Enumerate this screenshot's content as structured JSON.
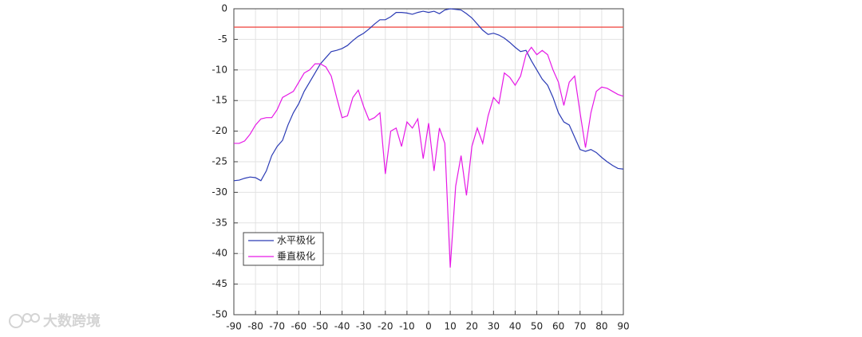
{
  "chart_data": {
    "type": "line",
    "x": [
      -90,
      -87.5,
      -85,
      -82.5,
      -80,
      -77.5,
      -75,
      -72.5,
      -70,
      -67.5,
      -65,
      -62.5,
      -60,
      -57.5,
      -55,
      -52.5,
      -50,
      -47.5,
      -45,
      -42.5,
      -40,
      -37.5,
      -35,
      -32.5,
      -30,
      -27.5,
      -25,
      -22.5,
      -20,
      -17.5,
      -15,
      -12.5,
      -10,
      -7.5,
      -5,
      -2.5,
      0,
      2.5,
      5,
      7.5,
      10,
      12.5,
      15,
      17.5,
      20,
      22.5,
      25,
      27.5,
      30,
      32.5,
      35,
      37.5,
      40,
      42.5,
      45,
      47.5,
      50,
      52.5,
      55,
      57.5,
      60,
      62.5,
      65,
      67.5,
      70,
      72.5,
      75,
      77.5,
      80,
      82.5,
      85,
      87.5,
      90
    ],
    "series": [
      {
        "name": "水平极化",
        "color": "#2b3bb5",
        "values": [
          -28.1,
          -28,
          -27.7,
          -27.5,
          -27.6,
          -28.1,
          -26.5,
          -24,
          -22.5,
          -21.5,
          -19,
          -17,
          -15.5,
          -13.5,
          -12,
          -10.5,
          -9,
          -8,
          -7,
          -6.8,
          -6.5,
          -6,
          -5.2,
          -4.5,
          -4,
          -3.3,
          -2.5,
          -1.8,
          -1.8,
          -1.3,
          -0.6,
          -0.6,
          -0.7,
          -0.9,
          -0.6,
          -0.4,
          -0.6,
          -0.4,
          -0.8,
          -0.2,
          0,
          -0.1,
          -0.2,
          -0.8,
          -1.5,
          -2.5,
          -3.5,
          -4.2,
          -4,
          -4.3,
          -4.8,
          -5.5,
          -6.3,
          -7,
          -6.8,
          -8.5,
          -10,
          -11.5,
          -12.5,
          -14.5,
          -17,
          -18.5,
          -19,
          -21,
          -23,
          -23.3,
          -23,
          -23.5,
          -24.3,
          -25,
          -25.6,
          -26.1,
          -26.2
        ]
      },
      {
        "name": "垂直极化",
        "color": "#e619e6",
        "values": [
          -22,
          -22,
          -21.6,
          -20.5,
          -19,
          -18,
          -17.8,
          -17.8,
          -16.5,
          -14.5,
          -14,
          -13.5,
          -12,
          -10.5,
          -10,
          -9,
          -9,
          -9.5,
          -11,
          -14.5,
          -17.8,
          -17.5,
          -14.5,
          -13.3,
          -16,
          -18.2,
          -17.8,
          -17,
          -27,
          -20,
          -19.5,
          -22.5,
          -18.5,
          -19.5,
          -18,
          -24.5,
          -18.7,
          -26.5,
          -19.5,
          -22,
          -42.3,
          -29,
          -24,
          -30.5,
          -22.5,
          -19.5,
          -22,
          -17.5,
          -14.5,
          -15.5,
          -10.5,
          -11.2,
          -12.5,
          -11,
          -7.5,
          -6.3,
          -7.5,
          -6.8,
          -7.5,
          -10,
          -12,
          -15.8,
          -12,
          -11,
          -17,
          -22.7,
          -17,
          -13.5,
          -12.8,
          -13,
          -13.5,
          -14,
          -14.3
        ]
      }
    ],
    "reference_line": {
      "value": -3,
      "color": "#f0504a"
    },
    "xlim": [
      -90,
      90
    ],
    "ylim": [
      -50,
      0
    ],
    "xticks": [
      -90,
      -80,
      -70,
      -60,
      -50,
      -40,
      -30,
      -20,
      -10,
      0,
      10,
      20,
      30,
      40,
      50,
      60,
      70,
      80,
      90
    ],
    "yticks": [
      -50,
      -45,
      -40,
      -35,
      -30,
      -25,
      -20,
      -15,
      -10,
      -5,
      0
    ],
    "grid": true,
    "legend": "lower-left",
    "watermark": "大数跨境"
  }
}
